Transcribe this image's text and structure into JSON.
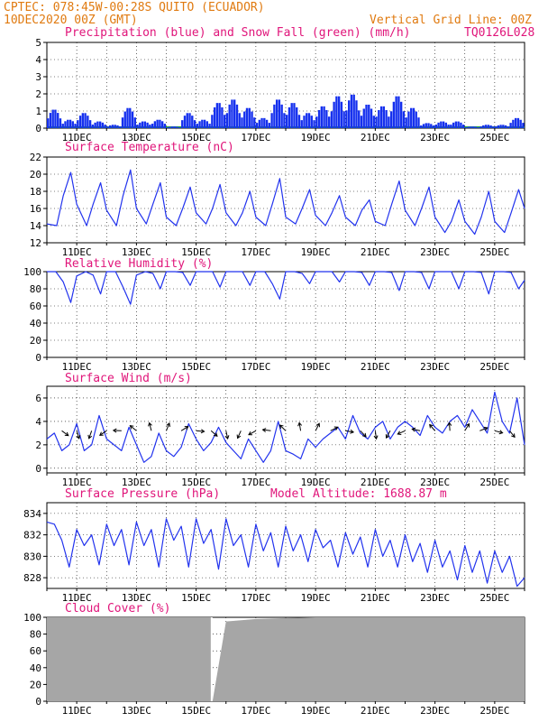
{
  "header": {
    "line1": "CPTEC:   078:45W-00:28S  QUITO (ECUADOR)",
    "line2": "10DEC2020 00Z (GMT)",
    "grid_note": "Vertical Grid Line: 00Z",
    "code": "TQ0126L028"
  },
  "colors": {
    "header": "#e07a10",
    "title": "#e0157a",
    "line": "#2233ee",
    "bar": "#1530ee",
    "snow": "#22aa22",
    "cloud": "#a6a6a6"
  },
  "x_ticks": [
    "11DEC",
    "13DEC",
    "15DEC",
    "17DEC",
    "19DEC",
    "21DEC",
    "23DEC",
    "25DEC"
  ],
  "panels": {
    "precip": {
      "title": "Precipitation (blue) and Snow Fall (green) (mm/h)",
      "y_ticks": [
        "0",
        "1",
        "2",
        "3",
        "4",
        "5"
      ]
    },
    "temp": {
      "title": "Surface Temperature (nC)",
      "y_ticks": [
        "12",
        "14",
        "16",
        "18",
        "20",
        "22"
      ]
    },
    "rh": {
      "title": "Relative Humidity (%)",
      "y_ticks": [
        "0",
        "20",
        "40",
        "60",
        "80",
        "100"
      ]
    },
    "wind": {
      "title": "Surface Wind (m/s)",
      "y_ticks": [
        "0",
        "2",
        "4",
        "6"
      ]
    },
    "pressure": {
      "title": "Surface Pressure (hPa)",
      "altitude": "Model Altitude: 1688.87 m",
      "y_ticks": [
        "828",
        "830",
        "832",
        "834"
      ]
    },
    "cloud": {
      "title": "Cloud Cover (%)",
      "y_ticks": [
        "0",
        "20",
        "40",
        "60",
        "80",
        "100"
      ]
    }
  },
  "chart_data": [
    {
      "type": "bar",
      "title": "Precipitation (blue) and Snow Fall (green) (mm/h)",
      "x_unit": "days since 10DEC2020 00Z",
      "ylim": [
        0,
        5
      ],
      "x": [
        0.0,
        0.5,
        1.0,
        1.5,
        2.0,
        2.5,
        3.0,
        3.5,
        4.0,
        4.5,
        5.0,
        5.5,
        6.0,
        6.5,
        7.0,
        7.5,
        8.0,
        8.5,
        9.0,
        9.5,
        10.0,
        10.5,
        11.0,
        11.5,
        12.0,
        12.5,
        13.0,
        13.5,
        14.0,
        14.5,
        15.0,
        15.5
      ],
      "values": [
        1.1,
        0.5,
        0.9,
        0.4,
        0.2,
        1.2,
        0.4,
        0.5,
        0.1,
        0.9,
        0.5,
        1.5,
        1.7,
        1.2,
        0.6,
        1.7,
        1.5,
        0.9,
        1.3,
        1.9,
        2.0,
        1.4,
        1.3,
        1.9,
        1.2,
        0.3,
        0.4,
        0.4,
        0.1,
        0.2,
        0.2,
        0.6
      ],
      "snow": 0
    },
    {
      "type": "line",
      "title": "Surface Temperature (nC)",
      "x_unit": "days since 10DEC2020 00Z",
      "ylim": [
        12,
        22
      ],
      "x": [
        0.0,
        0.33,
        0.55,
        0.8,
        1.0,
        1.33,
        1.55,
        1.8,
        2.0,
        2.33,
        2.55,
        2.8,
        3.0,
        3.33,
        3.55,
        3.8,
        4.0,
        4.33,
        4.55,
        4.8,
        5.0,
        5.33,
        5.55,
        5.8,
        6.0,
        6.33,
        6.55,
        6.8,
        7.0,
        7.33,
        7.55,
        7.8,
        8.0,
        8.33,
        8.55,
        8.8,
        9.0,
        9.33,
        9.55,
        9.8,
        10.0,
        10.33,
        10.55,
        10.8,
        11.0,
        11.33,
        11.55,
        11.8,
        12.0,
        12.33,
        12.55,
        12.8,
        13.0,
        13.33,
        13.55,
        13.8,
        14.0,
        14.33,
        14.55,
        14.8,
        15.0,
        15.33,
        15.55,
        15.8,
        16.0
      ],
      "values": [
        14.2,
        14.0,
        17.5,
        20.2,
        16.5,
        14.0,
        16.5,
        19.0,
        15.8,
        14.0,
        17.5,
        20.5,
        16.0,
        14.2,
        16.5,
        19.0,
        15.0,
        14.0,
        16.0,
        18.5,
        15.5,
        14.2,
        16.0,
        18.8,
        15.5,
        14.0,
        15.5,
        18.0,
        15.0,
        14.0,
        16.5,
        19.5,
        15.0,
        14.2,
        16.0,
        18.2,
        15.2,
        14.0,
        15.5,
        17.5,
        15.0,
        14.0,
        15.8,
        17.0,
        14.5,
        14.0,
        16.5,
        19.2,
        15.8,
        14.0,
        16.0,
        18.5,
        15.0,
        13.2,
        14.5,
        17.0,
        14.5,
        13.0,
        15.0,
        18.0,
        14.5,
        13.2,
        15.5,
        18.2,
        16.0
      ]
    },
    {
      "type": "line",
      "title": "Relative Humidity (%)",
      "x_unit": "days since 10DEC2020 00Z",
      "ylim": [
        0,
        100
      ],
      "x": [
        0.0,
        0.3,
        0.55,
        0.8,
        1.0,
        1.3,
        1.55,
        1.8,
        2.0,
        2.3,
        2.55,
        2.8,
        3.0,
        3.3,
        3.55,
        3.8,
        4.0,
        4.3,
        4.55,
        4.8,
        5.0,
        5.3,
        5.55,
        5.8,
        6.0,
        6.3,
        6.55,
        6.8,
        7.0,
        7.3,
        7.55,
        7.8,
        8.0,
        8.3,
        8.55,
        8.8,
        9.0,
        9.3,
        9.55,
        9.8,
        10.0,
        10.3,
        10.55,
        10.8,
        11.0,
        11.3,
        11.55,
        11.8,
        12.0,
        12.3,
        12.55,
        12.8,
        13.0,
        13.3,
        13.55,
        13.8,
        14.0,
        14.3,
        14.55,
        14.8,
        15.0,
        15.3,
        15.55,
        15.8,
        16.0
      ],
      "values": [
        100,
        100,
        88,
        64,
        95,
        100,
        96,
        74,
        100,
        100,
        82,
        62,
        96,
        100,
        98,
        80,
        100,
        100,
        99,
        84,
        100,
        100,
        100,
        82,
        100,
        100,
        100,
        84,
        100,
        100,
        86,
        68,
        100,
        100,
        98,
        86,
        100,
        100,
        100,
        88,
        100,
        100,
        99,
        84,
        100,
        100,
        99,
        78,
        100,
        100,
        99,
        80,
        100,
        100,
        100,
        80,
        100,
        100,
        99,
        74,
        100,
        100,
        99,
        80,
        90
      ]
    },
    {
      "type": "line",
      "title": "Surface Wind (m/s)",
      "x_unit": "days since 10DEC2020 00Z",
      "ylim": [
        0,
        7
      ],
      "x": [
        0.0,
        0.25,
        0.5,
        0.75,
        1.0,
        1.25,
        1.5,
        1.75,
        2.0,
        2.25,
        2.5,
        2.75,
        3.0,
        3.25,
        3.5,
        3.75,
        4.0,
        4.25,
        4.5,
        4.75,
        5.0,
        5.25,
        5.5,
        5.75,
        6.0,
        6.25,
        6.5,
        6.75,
        7.0,
        7.25,
        7.5,
        7.75,
        8.0,
        8.25,
        8.5,
        8.75,
        9.0,
        9.25,
        9.5,
        9.75,
        10.0,
        10.25,
        10.5,
        10.75,
        11.0,
        11.25,
        11.5,
        11.75,
        12.0,
        12.25,
        12.5,
        12.75,
        13.0,
        13.25,
        13.5,
        13.75,
        14.0,
        14.25,
        14.5,
        14.75,
        15.0,
        15.25,
        15.5,
        15.75,
        16.0
      ],
      "values": [
        2.5,
        3.0,
        1.5,
        2.0,
        3.8,
        1.5,
        2.0,
        4.5,
        2.5,
        2.0,
        1.5,
        3.5,
        2.0,
        0.5,
        1.0,
        3.0,
        1.5,
        1.0,
        1.8,
        3.8,
        2.5,
        1.5,
        2.2,
        3.5,
        2.2,
        1.5,
        0.8,
        2.5,
        1.5,
        0.5,
        1.5,
        4.0,
        1.5,
        1.2,
        0.8,
        2.5,
        1.8,
        2.5,
        3.0,
        3.5,
        2.5,
        4.5,
        3.0,
        2.5,
        3.5,
        4.0,
        2.5,
        3.5,
        4.0,
        3.5,
        2.8,
        4.5,
        3.5,
        3.0,
        4.0,
        4.5,
        3.5,
        5.0,
        4.0,
        3.0,
        6.5,
        4.0,
        3.0,
        6.0,
        2.0
      ]
    },
    {
      "type": "line",
      "title": "Surface Pressure (hPa)",
      "x_unit": "days since 10DEC2020 00Z",
      "ylim": [
        827,
        835
      ],
      "x": [
        0.0,
        0.25,
        0.5,
        0.75,
        1.0,
        1.25,
        1.5,
        1.75,
        2.0,
        2.25,
        2.5,
        2.75,
        3.0,
        3.25,
        3.5,
        3.75,
        4.0,
        4.25,
        4.5,
        4.75,
        5.0,
        5.25,
        5.5,
        5.75,
        6.0,
        6.25,
        6.5,
        6.75,
        7.0,
        7.25,
        7.5,
        7.75,
        8.0,
        8.25,
        8.5,
        8.75,
        9.0,
        9.25,
        9.5,
        9.75,
        10.0,
        10.25,
        10.5,
        10.75,
        11.0,
        11.25,
        11.5,
        11.75,
        12.0,
        12.25,
        12.5,
        12.75,
        13.0,
        13.25,
        13.5,
        13.75,
        14.0,
        14.25,
        14.5,
        14.75,
        15.0,
        15.25,
        15.5,
        15.75,
        16.0
      ],
      "values": [
        833.2,
        833.0,
        831.5,
        829.0,
        832.5,
        831.0,
        832.0,
        829.2,
        833.0,
        831.0,
        832.5,
        829.2,
        833.2,
        831.0,
        832.5,
        829.0,
        833.5,
        831.5,
        832.8,
        829.0,
        833.5,
        831.2,
        832.5,
        828.8,
        833.5,
        831.0,
        832.0,
        829.0,
        833.0,
        830.5,
        832.2,
        829.0,
        832.8,
        830.5,
        832.0,
        829.5,
        832.5,
        830.8,
        831.5,
        829.0,
        832.2,
        830.2,
        831.8,
        829.0,
        832.5,
        830.0,
        831.5,
        829.0,
        832.0,
        829.5,
        831.2,
        828.5,
        831.5,
        829.0,
        830.5,
        827.8,
        831.0,
        828.5,
        830.5,
        827.5,
        830.5,
        828.5,
        830.0,
        827.2,
        828.0
      ]
    },
    {
      "type": "area",
      "title": "Cloud Cover (%)",
      "x_unit": "days since 10DEC2020 00Z",
      "ylim": [
        0,
        100
      ],
      "x": [
        0,
        1,
        2,
        3,
        4,
        5,
        5.5,
        5.55,
        6,
        7,
        8,
        9,
        10,
        11,
        12,
        13,
        14,
        15,
        16
      ],
      "values": [
        100,
        100,
        100,
        100,
        100,
        100,
        100,
        0,
        95,
        98,
        99,
        100,
        100,
        100,
        100,
        100,
        100,
        100,
        100
      ]
    }
  ]
}
